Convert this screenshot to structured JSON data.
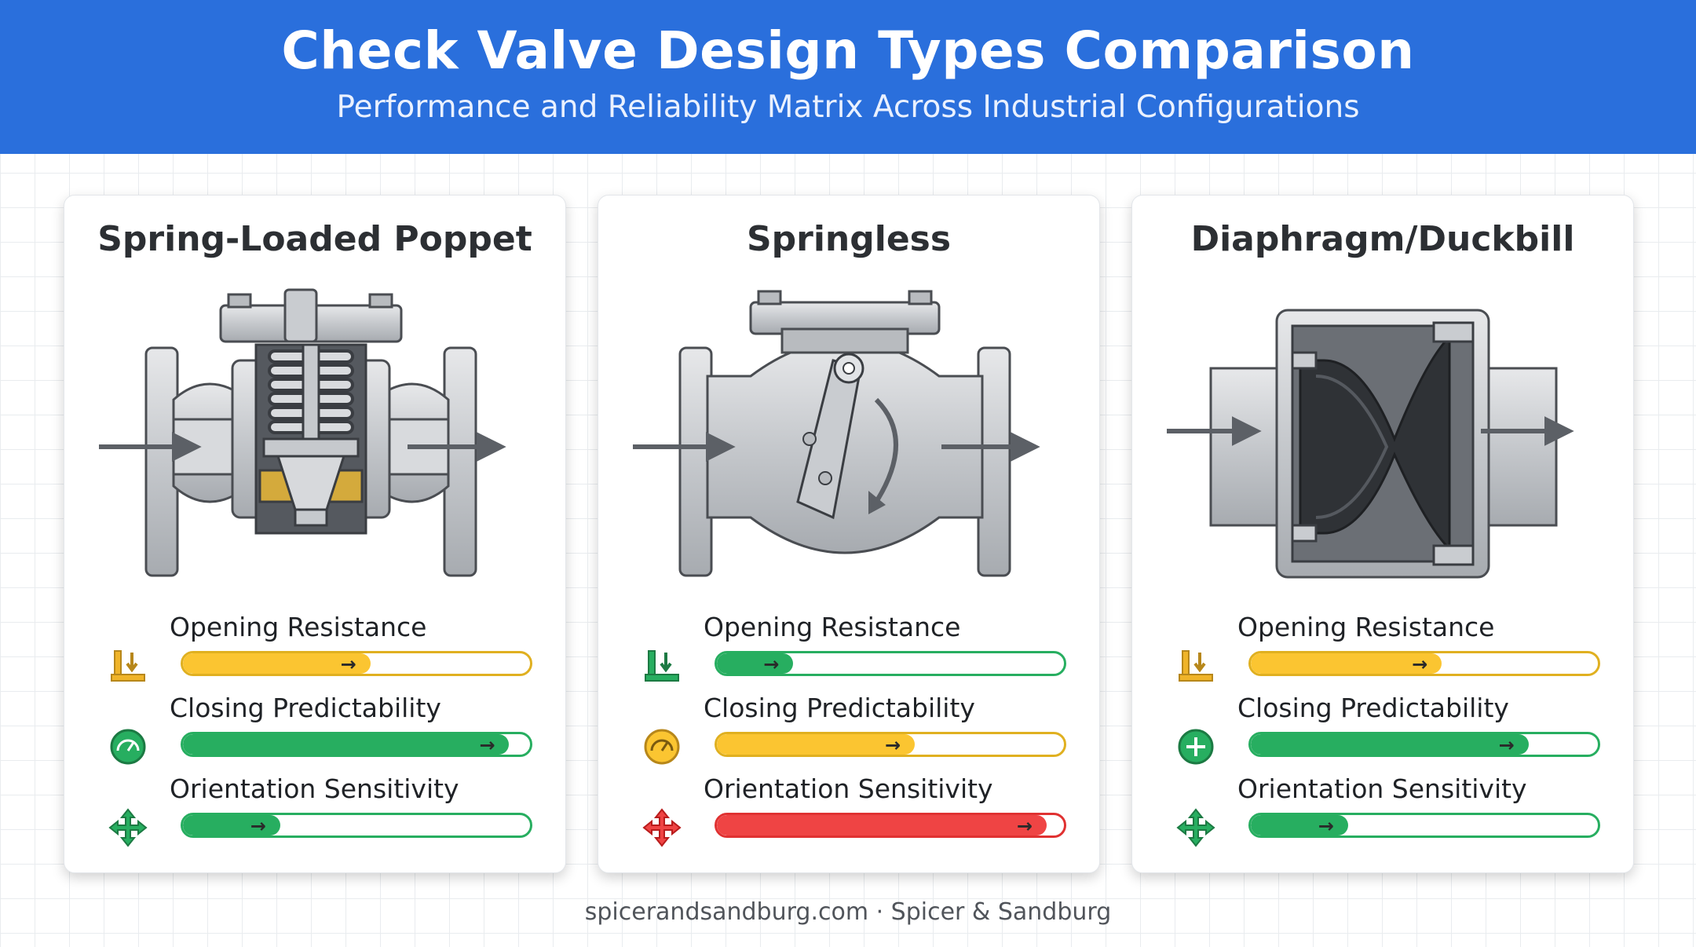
{
  "header": {
    "title": "Check Valve Design Types Comparison",
    "subtitle": "Performance and Reliability Matrix Across Industrial Configurations"
  },
  "colors": {
    "header_blue": "#2a6fdc",
    "green": "#27ae60",
    "yellow": "#fbc531",
    "red": "#ef4444"
  },
  "cards": [
    {
      "title": "Spring-Loaded Poppet",
      "illustration": "spring-loaded-poppet-valve-cutaway",
      "metrics": [
        {
          "label": "Opening Resistance",
          "level": 0.54,
          "color": "#fbc531",
          "track": "#e0b020",
          "icon": "pressure-down-icon"
        },
        {
          "label": "Closing Predictability",
          "level": 0.94,
          "color": "#27ae60",
          "track": "#27ae60",
          "icon": "gauge-icon"
        },
        {
          "label": "Orientation Sensitivity",
          "level": 0.28,
          "color": "#27ae60",
          "track": "#27ae60",
          "icon": "four-way-arrows-icon"
        }
      ]
    },
    {
      "title": "Springless",
      "illustration": "swing-check-valve-cutaway",
      "metrics": [
        {
          "label": "Opening Resistance",
          "level": 0.22,
          "color": "#27ae60",
          "track": "#27ae60",
          "icon": "pressure-down-icon"
        },
        {
          "label": "Closing Predictability",
          "level": 0.57,
          "color": "#fbc531",
          "track": "#e0b020",
          "icon": "gauge-icon"
        },
        {
          "label": "Orientation Sensitivity",
          "level": 0.95,
          "color": "#ef4444",
          "track": "#e03131",
          "icon": "four-way-arrows-icon"
        }
      ]
    },
    {
      "title": "Diaphragm/Duckbill",
      "illustration": "duckbill-diaphragm-valve-cutaway",
      "metrics": [
        {
          "label": "Opening Resistance",
          "level": 0.55,
          "color": "#fbc531",
          "track": "#e0b020",
          "icon": "pressure-down-icon"
        },
        {
          "label": "Closing Predictability",
          "level": 0.8,
          "color": "#27ae60",
          "track": "#27ae60",
          "icon": "plus-circle-icon"
        },
        {
          "label": "Orientation Sensitivity",
          "level": 0.28,
          "color": "#27ae60",
          "track": "#27ae60",
          "icon": "four-way-arrows-icon"
        }
      ]
    }
  ],
  "footer": {
    "text": "spicerandsandburg.com · Spicer & Sandburg"
  }
}
